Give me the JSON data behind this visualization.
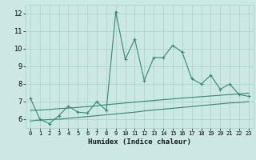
{
  "xlabel": "Humidex (Indice chaleur)",
  "x_values": [
    0,
    1,
    2,
    3,
    4,
    5,
    6,
    7,
    8,
    9,
    10,
    11,
    12,
    13,
    14,
    15,
    16,
    17,
    18,
    19,
    20,
    21,
    22,
    23
  ],
  "y_main": [
    7.2,
    6.0,
    5.75,
    6.2,
    6.75,
    6.4,
    6.35,
    7.0,
    6.5,
    12.1,
    9.4,
    10.55,
    8.2,
    9.5,
    9.5,
    10.2,
    9.8,
    8.3,
    8.0,
    8.5,
    7.7,
    8.0,
    7.4,
    7.3
  ],
  "y_low": [
    5.9,
    5.95,
    5.98,
    6.0,
    6.05,
    6.1,
    6.15,
    6.2,
    6.25,
    6.3,
    6.35,
    6.4,
    6.47,
    6.52,
    6.57,
    6.62,
    6.67,
    6.72,
    6.77,
    6.82,
    6.87,
    6.92,
    6.95,
    7.0
  ],
  "y_high": [
    6.5,
    6.52,
    6.55,
    6.6,
    6.63,
    6.67,
    6.72,
    6.76,
    6.82,
    6.87,
    6.92,
    6.97,
    7.02,
    7.06,
    7.11,
    7.15,
    7.2,
    7.24,
    7.28,
    7.32,
    7.36,
    7.4,
    7.44,
    7.48
  ],
  "line_color": "#2E8B6E",
  "bg_color": "#cce8e5",
  "grid_color": "#aacfcc",
  "ylim": [
    5.5,
    12.5
  ],
  "xlim": [
    -0.5,
    23.5
  ],
  "yticks": [
    6,
    7,
    8,
    9,
    10,
    11,
    12
  ],
  "xticks": [
    0,
    1,
    2,
    3,
    4,
    5,
    6,
    7,
    8,
    9,
    10,
    11,
    12,
    13,
    14,
    15,
    16,
    17,
    18,
    19,
    20,
    21,
    22,
    23
  ]
}
